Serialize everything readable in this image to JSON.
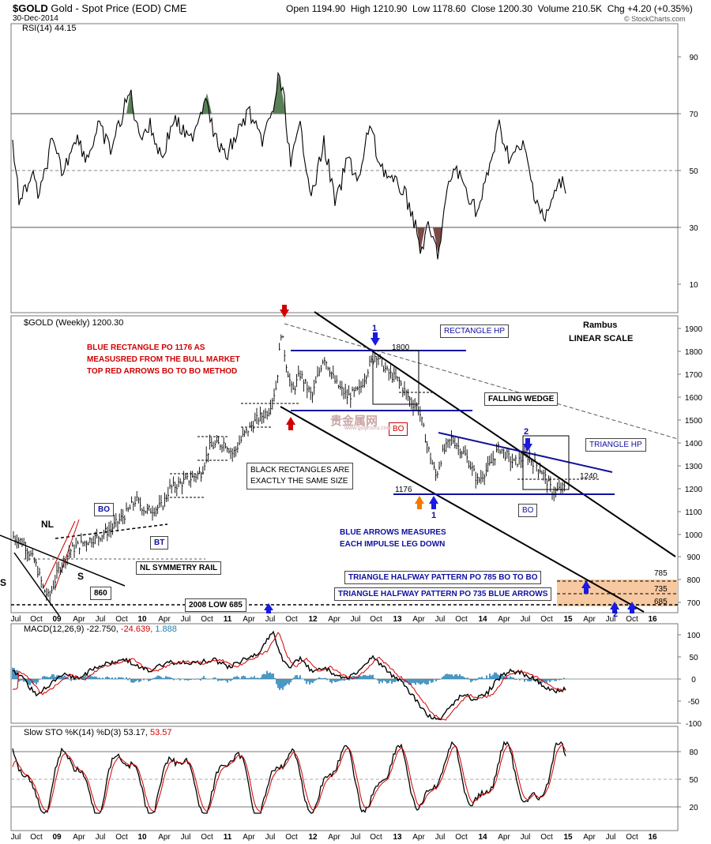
{
  "header": {
    "symbol": "$GOLD",
    "name": "Gold - Spot Price (EOD)",
    "exchange": "CME",
    "date": "30-Dec-2014",
    "open_label": "Open",
    "open": "1194.90",
    "high_label": "High",
    "high": "1210.90",
    "low_label": "Low",
    "low": "1178.60",
    "close_label": "Close",
    "close": "1200.30",
    "volume_label": "Volume",
    "volume": "210.5K",
    "chg_label": "Chg",
    "chg": "+4.20 (+0.35%)",
    "chg_color": "#d00000",
    "watermark": "© StockCharts.com"
  },
  "x_axis": {
    "labels": [
      "Jul",
      "Oct",
      "09",
      "Apr",
      "Jul",
      "Oct",
      "10",
      "Apr",
      "Jul",
      "Oct",
      "11",
      "Apr",
      "Jul",
      "Oct",
      "12",
      "Apr",
      "Jul",
      "Oct",
      "13",
      "Apr",
      "Jul",
      "Oct",
      "14",
      "Apr",
      "Jul",
      "Oct",
      "15",
      "Apr",
      "Jul",
      "Oct",
      "16"
    ]
  },
  "rsi": {
    "legend": "RSI(14) 44.15",
    "ticks": [
      "90",
      "70",
      "50",
      "30",
      "10"
    ]
  },
  "price": {
    "legend": "$GOLD (Weekly) 1200.30",
    "ticks": [
      "1900",
      "1800",
      "1700",
      "1600",
      "1500",
      "1400",
      "1300",
      "1200",
      "1100",
      "1000",
      "900",
      "800",
      "700"
    ]
  },
  "macd": {
    "legend_a": "MACD(12,26,9) -22.750,",
    "legend_b": "-24.639,",
    "legend_c": "1.888",
    "ticks": [
      "100",
      "50",
      "0",
      "-50",
      "-100"
    ]
  },
  "sto": {
    "legend_a": "Slow STO %K(14) %D(3) 53.17,",
    "legend_b": "53.57",
    "ticks": [
      "80",
      "50",
      "20"
    ]
  },
  "annotations": {
    "red_title": "BLUE RECTANGLE PO 1176 AS MEASUSRED FROM THE BULL MARKET TOP RED ARROWS BO TO BO METHOD",
    "red_line1": "BLUE RECTANGLE PO 1176 AS",
    "red_line2": "MEASUSRED FROM THE BULL MARKET",
    "red_line3": "TOP RED ARROWS BO TO BO METHOD",
    "rambus": "Rambus",
    "linear_scale": "LINEAR SCALE",
    "rect_hp": "RECTANGLE HP",
    "falling_wedge": "FALLING WEDGE",
    "triangle_hp": "TRIANGLE HP",
    "black_rect_1": "BLACK RECTANGLES ARE",
    "black_rect_2": "EXACTLY THE SAME SIZE",
    "blue_arrows_1": "BLUE ARROWS MEASURES",
    "blue_arrows_2": "EACH IMPULSE LEG DOWN",
    "tri_785": "TRIANGLE HALFWAY PATTERN PO 785 BO TO BO",
    "tri_735": "TRIANGLE HALFWAY PATTERN PO 735 BLUE ARROWS",
    "low_2008": "2008 LOW 685",
    "nl": "NL",
    "nl_rail": "NL SYMMETRY RAIL",
    "bo": "BO",
    "bt": "BT",
    "s": "S",
    "v860": "860",
    "v1800": "1800",
    "v1240": "1240",
    "v1176": "1176",
    "v785": "785",
    "v735": "735",
    "v685": "685",
    "n1": "1",
    "n2": "2",
    "watermark_cn": "贵金属网",
    "watermark_url": "www.guijinshu.com",
    "bo_small": "BO"
  },
  "colors": {
    "price": "#000000",
    "macd_signal": "#d00000",
    "histogram": "#1f7fb5",
    "rsi_over": "#5a7f57",
    "rsi_under": "#7a4a48",
    "ann_red": "#d00000",
    "ann_blue": "#1010a0",
    "target_zone": "#f7c9a1"
  }
}
